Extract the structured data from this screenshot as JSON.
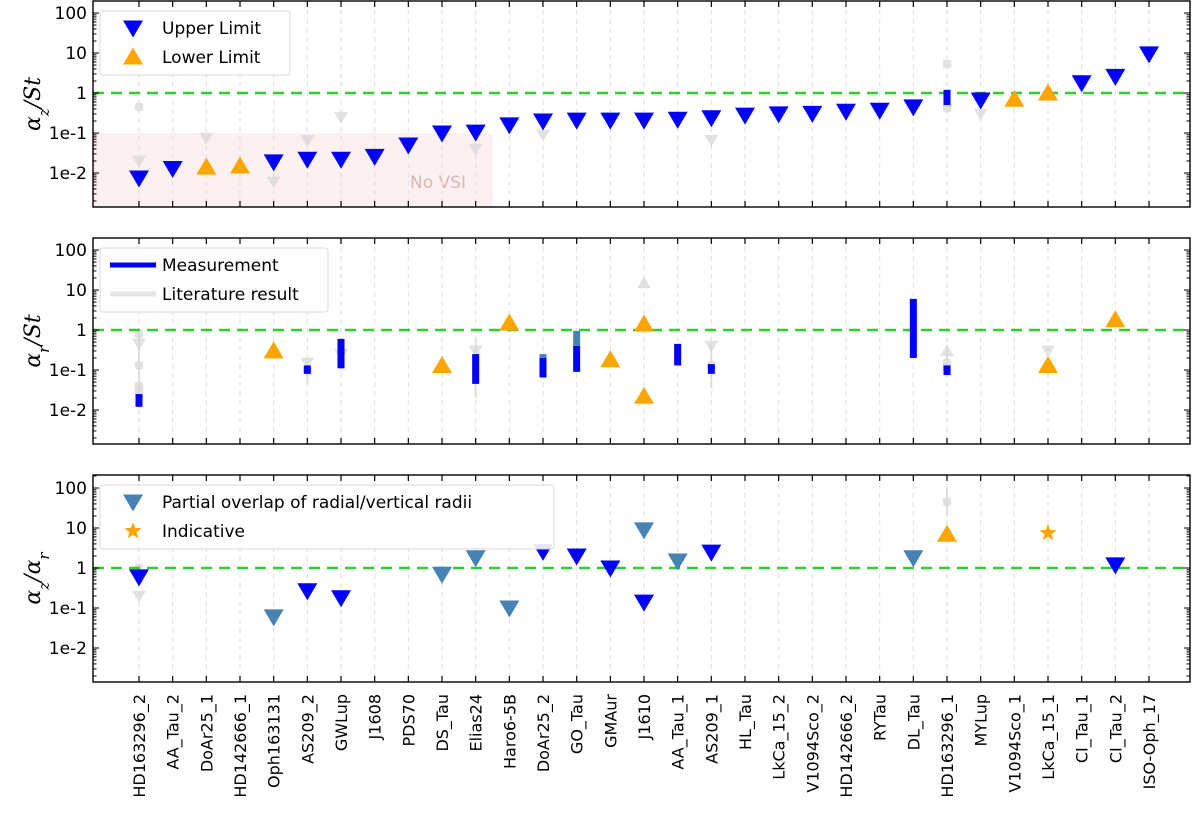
{
  "chart_data": {
    "type": "scatter",
    "categories": [
      "HD163296_2",
      "AA_Tau_2",
      "DoAr25_1",
      "HD142666_1",
      "Oph163131",
      "AS209_2",
      "GWLup",
      "J1608",
      "PDS70",
      "DS_Tau",
      "Elias24",
      "Haro6-5B",
      "DoAr25_2",
      "GO_Tau",
      "GMAur",
      "J1610",
      "AA_Tau_1",
      "AS209_1",
      "HL_Tau",
      "LkCa_15_2",
      "V1094Sco_2",
      "HD142666_2",
      "RYTau",
      "DL_Tau",
      "HD163296_1",
      "MYLup",
      "V1094Sco_1",
      "LkCa_15_1",
      "CI_Tau_1",
      "CI_Tau_2",
      "ISO-Oph_17"
    ],
    "colors": {
      "upper": "#0000ff",
      "lower": "#ffa500",
      "partial": "#4682b4",
      "literature": "#d9d9d9",
      "reference": "#33cc33",
      "novsi_fill": "#fdf0f0",
      "novsi_text": "#e0b4b4"
    },
    "panels": [
      {
        "ylabel": "αz/St",
        "ylabel_main": "α",
        "ylabel_sub": "z",
        "ylabel_tail": "/St",
        "yscale": "log",
        "ylim": [
          0.0014,
          210
        ],
        "yticks": [
          {
            "v": 100,
            "label": "100"
          },
          {
            "v": 10,
            "label": "10"
          },
          {
            "v": 1,
            "label": "1"
          },
          {
            "v": 0.1,
            "label": "1e-1"
          },
          {
            "v": 0.01,
            "label": "1e-2"
          }
        ],
        "reference_line": 1,
        "shaded_region": {
          "label": "No VSI",
          "x_from": -2.2,
          "x_to": 10.5,
          "y_max": 0.1
        },
        "legend": {
          "position": "top-left",
          "items": [
            {
              "marker": "down",
              "color": "#0000ff",
              "label": "Upper Limit"
            },
            {
              "marker": "up",
              "color": "#ffa500",
              "label": "Lower Limit"
            }
          ]
        },
        "points": [
          {
            "i": 0,
            "v": 0.0075,
            "m": "down",
            "c": "upper"
          },
          {
            "i": 1,
            "v": 0.013,
            "m": "down",
            "c": "upper"
          },
          {
            "i": 2,
            "v": 0.014,
            "m": "up",
            "c": "lower"
          },
          {
            "i": 3,
            "v": 0.015,
            "m": "up",
            "c": "lower"
          },
          {
            "i": 4,
            "v": 0.019,
            "m": "down",
            "c": "upper"
          },
          {
            "i": 5,
            "v": 0.022,
            "m": "down",
            "c": "upper"
          },
          {
            "i": 6,
            "v": 0.022,
            "m": "down",
            "c": "upper"
          },
          {
            "i": 7,
            "v": 0.026,
            "m": "down",
            "c": "upper"
          },
          {
            "i": 8,
            "v": 0.05,
            "m": "down",
            "c": "upper"
          },
          {
            "i": 9,
            "v": 0.1,
            "m": "down",
            "c": "upper"
          },
          {
            "i": 10,
            "v": 0.105,
            "m": "down",
            "c": "upper"
          },
          {
            "i": 11,
            "v": 0.16,
            "m": "down",
            "c": "upper"
          },
          {
            "i": 12,
            "v": 0.2,
            "m": "down",
            "c": "upper"
          },
          {
            "i": 13,
            "v": 0.21,
            "m": "down",
            "c": "upper"
          },
          {
            "i": 14,
            "v": 0.21,
            "m": "down",
            "c": "upper"
          },
          {
            "i": 15,
            "v": 0.21,
            "m": "down",
            "c": "upper"
          },
          {
            "i": 16,
            "v": 0.22,
            "m": "down",
            "c": "upper"
          },
          {
            "i": 17,
            "v": 0.24,
            "m": "down",
            "c": "upper"
          },
          {
            "i": 18,
            "v": 0.28,
            "m": "down",
            "c": "upper"
          },
          {
            "i": 19,
            "v": 0.3,
            "m": "down",
            "c": "upper"
          },
          {
            "i": 20,
            "v": 0.31,
            "m": "down",
            "c": "upper"
          },
          {
            "i": 21,
            "v": 0.35,
            "m": "down",
            "c": "upper"
          },
          {
            "i": 22,
            "v": 0.37,
            "m": "down",
            "c": "upper"
          },
          {
            "i": 23,
            "v": 0.45,
            "m": "down",
            "c": "upper"
          },
          {
            "i": 25,
            "v": 0.67,
            "m": "down",
            "c": "upper"
          },
          {
            "i": 26,
            "v": 0.7,
            "m": "up",
            "c": "lower"
          },
          {
            "i": 27,
            "v": 1.0,
            "m": "up",
            "c": "lower"
          },
          {
            "i": 28,
            "v": 1.8,
            "m": "down",
            "c": "upper"
          },
          {
            "i": 29,
            "v": 2.6,
            "m": "down",
            "c": "upper"
          },
          {
            "i": 30,
            "v": 9.5,
            "m": "down",
            "c": "upper"
          }
        ],
        "bars": [
          {
            "i": 24,
            "lo": 0.5,
            "hi": 1.2,
            "c": "upper"
          }
        ],
        "literature": [
          {
            "i": 0,
            "v": 0.45,
            "m": "circle"
          },
          {
            "i": 0,
            "v": 0.02,
            "m": "down"
          },
          {
            "i": 2,
            "v": 0.075,
            "m": "down"
          },
          {
            "i": 4,
            "v": 0.006,
            "m": "down"
          },
          {
            "i": 5,
            "v": 0.066,
            "m": "down"
          },
          {
            "i": 6,
            "v": 0.25,
            "m": "down"
          },
          {
            "i": 10,
            "v": 0.04,
            "m": "down"
          },
          {
            "i": 12,
            "v": 0.09,
            "m": "down"
          },
          {
            "i": 17,
            "v": 0.066,
            "m": "down"
          },
          {
            "i": 24,
            "v": 5.3,
            "m": "circle"
          },
          {
            "i": 24,
            "v": 0.42,
            "m": "circle"
          },
          {
            "i": 25,
            "v": 0.3,
            "m": "down"
          }
        ]
      },
      {
        "ylabel": "αr/St",
        "ylabel_main": "α",
        "ylabel_sub": "r",
        "ylabel_tail": "/St",
        "yscale": "log",
        "ylim": [
          0.0014,
          210
        ],
        "yticks": [
          {
            "v": 100,
            "label": "100"
          },
          {
            "v": 10,
            "label": "10"
          },
          {
            "v": 1,
            "label": "1"
          },
          {
            "v": 0.1,
            "label": "1e-1"
          },
          {
            "v": 0.01,
            "label": "1e-2"
          }
        ],
        "reference_line": 1,
        "legend": {
          "position": "top-left",
          "items": [
            {
              "marker": "line",
              "color": "#0000ff",
              "label": "Measurement"
            },
            {
              "marker": "line",
              "color": "#e6e6e6",
              "label": "Literature result"
            }
          ]
        },
        "points": [
          {
            "i": 4,
            "v": 0.3,
            "m": "up",
            "c": "lower"
          },
          {
            "i": 9,
            "v": 0.13,
            "m": "up",
            "c": "lower"
          },
          {
            "i": 11,
            "v": 1.5,
            "m": "up",
            "c": "lower"
          },
          {
            "i": 14,
            "v": 0.18,
            "m": "up",
            "c": "lower"
          },
          {
            "i": 15,
            "v": 1.4,
            "m": "up",
            "c": "lower"
          },
          {
            "i": 15,
            "v": 0.022,
            "m": "up",
            "c": "lower"
          },
          {
            "i": 27,
            "v": 0.13,
            "m": "up",
            "c": "lower"
          },
          {
            "i": 29,
            "v": 1.8,
            "m": "up",
            "c": "lower"
          }
        ],
        "bars": [
          {
            "i": 0,
            "lo": 0.012,
            "hi": 0.025,
            "c": "upper"
          },
          {
            "i": 5,
            "lo": 0.08,
            "hi": 0.13,
            "c": "upper"
          },
          {
            "i": 6,
            "lo": 0.11,
            "hi": 0.6,
            "c": "upper"
          },
          {
            "i": 10,
            "lo": 0.045,
            "hi": 0.25,
            "c": "upper"
          },
          {
            "i": 12,
            "lo": 0.065,
            "hi": 0.2,
            "c": "upper"
          },
          {
            "i": 12,
            "lo": 0.2,
            "hi": 0.25,
            "c": "partial"
          },
          {
            "i": 13,
            "lo": 0.09,
            "hi": 0.4,
            "c": "upper"
          },
          {
            "i": 13,
            "lo": 0.4,
            "hi": 0.95,
            "c": "partial"
          },
          {
            "i": 16,
            "lo": 0.13,
            "hi": 0.45,
            "c": "upper"
          },
          {
            "i": 17,
            "lo": 0.08,
            "hi": 0.14,
            "c": "upper"
          },
          {
            "i": 23,
            "lo": 0.2,
            "hi": 6,
            "c": "upper"
          },
          {
            "i": 24,
            "lo": 0.075,
            "hi": 0.13,
            "c": "upper"
          }
        ],
        "literature": [
          {
            "i": 0,
            "v": 0.8,
            "m": "circle"
          },
          {
            "i": 0,
            "v": 0.45,
            "m": "down"
          },
          {
            "i": 0,
            "v": 0.13,
            "m": "circle"
          },
          {
            "i": 0,
            "v": 0.04,
            "m": "circle"
          },
          {
            "i": 0,
            "v": 0.03,
            "m": "circle"
          },
          {
            "i": 5,
            "v": 0.15,
            "m": "down"
          },
          {
            "i": 5,
            "v": 0.1,
            "m": "circle"
          },
          {
            "i": 6,
            "v": 0.25,
            "m": "down"
          },
          {
            "i": 10,
            "v": 0.3,
            "m": "down"
          },
          {
            "i": 15,
            "v": 15,
            "m": "up"
          },
          {
            "i": 17,
            "v": 0.4,
            "m": "down"
          },
          {
            "i": 17,
            "v": 0.13,
            "m": "circle"
          },
          {
            "i": 24,
            "v": 0.3,
            "m": "up"
          },
          {
            "i": 24,
            "v": 0.15,
            "m": "circle"
          },
          {
            "i": 24,
            "v": 0.11,
            "m": "circle"
          },
          {
            "i": 27,
            "v": 0.3,
            "m": "down"
          }
        ],
        "literature_lines": [
          {
            "i": 0,
            "lo": 0.012,
            "hi": 0.9
          },
          {
            "i": 5,
            "lo": 0.045,
            "hi": 0.17
          },
          {
            "i": 10,
            "lo": 0.02,
            "hi": 0.6
          },
          {
            "i": 17,
            "lo": 0.035,
            "hi": 0.45
          },
          {
            "i": 24,
            "lo": 0.08,
            "hi": 0.35
          }
        ]
      },
      {
        "ylabel": "αz/αr",
        "ylabel_main": "α",
        "ylabel_sub": "z",
        "ylabel_tail": "/α",
        "ylabel_sub2": "r",
        "yscale": "log",
        "ylim": [
          0.0014,
          210
        ],
        "yticks": [
          {
            "v": 100,
            "label": "100"
          },
          {
            "v": 10,
            "label": "10"
          },
          {
            "v": 1,
            "label": "1"
          },
          {
            "v": 0.1,
            "label": "1e-1"
          },
          {
            "v": 0.01,
            "label": "1e-2"
          }
        ],
        "reference_line": 1,
        "legend": {
          "position": "top-left",
          "items": [
            {
              "marker": "down",
              "color": "#4682b4",
              "label": "Partial overlap of radial/vertical radii"
            },
            {
              "marker": "star",
              "color": "#ffa500",
              "label": "Indicative"
            }
          ]
        },
        "points": [
          {
            "i": 0,
            "v": 0.6,
            "m": "down",
            "c": "upper"
          },
          {
            "i": 4,
            "v": 0.06,
            "m": "down",
            "c": "partial"
          },
          {
            "i": 5,
            "v": 0.27,
            "m": "down",
            "c": "upper"
          },
          {
            "i": 6,
            "v": 0.18,
            "m": "down",
            "c": "upper"
          },
          {
            "i": 9,
            "v": 0.7,
            "m": "down",
            "c": "partial"
          },
          {
            "i": 10,
            "v": 1.8,
            "m": "down",
            "c": "partial"
          },
          {
            "i": 11,
            "v": 0.1,
            "m": "down",
            "c": "partial"
          },
          {
            "i": 12,
            "v": 2.6,
            "m": "down",
            "c": "upper"
          },
          {
            "i": 13,
            "v": 2.0,
            "m": "down",
            "c": "upper"
          },
          {
            "i": 14,
            "v": 1.0,
            "m": "down",
            "c": "upper"
          },
          {
            "i": 15,
            "v": 9.0,
            "m": "down",
            "c": "partial"
          },
          {
            "i": 15,
            "v": 0.14,
            "m": "down",
            "c": "upper"
          },
          {
            "i": 16,
            "v": 1.5,
            "m": "down",
            "c": "partial"
          },
          {
            "i": 17,
            "v": 2.5,
            "m": "down",
            "c": "upper"
          },
          {
            "i": 23,
            "v": 1.8,
            "m": "down",
            "c": "partial"
          },
          {
            "i": 24,
            "v": 7.0,
            "m": "up",
            "c": "lower"
          },
          {
            "i": 27,
            "v": 7.5,
            "m": "star",
            "c": "lower"
          },
          {
            "i": 29,
            "v": 1.2,
            "m": "down",
            "c": "upper"
          }
        ],
        "bars": [],
        "literature": [
          {
            "i": 0,
            "v": 1.0,
            "m": "circle"
          },
          {
            "i": 0,
            "v": 0.2,
            "m": "down"
          },
          {
            "i": 24,
            "v": 45,
            "m": "circle"
          }
        ],
        "literature_lines": [
          {
            "i": 24,
            "lo": 20,
            "hi": 100
          }
        ]
      }
    ]
  }
}
